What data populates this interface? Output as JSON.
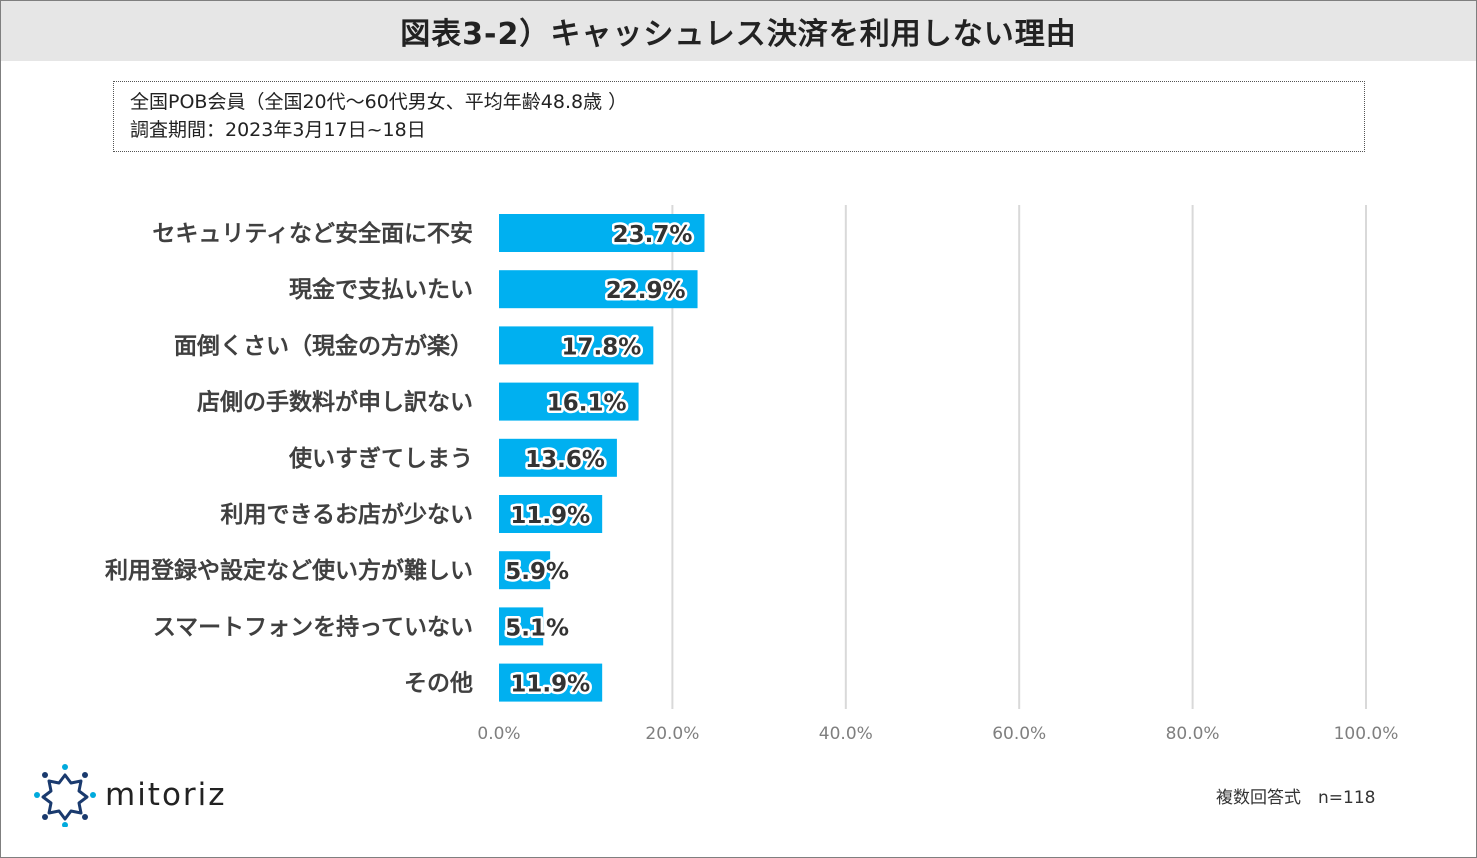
{
  "header": {
    "title": "図表3-2）キャッシュレス決済を利用しない理由"
  },
  "info": {
    "line1": "全国POB会員（全国20代～60代男女、平均年齢48.8歳 ）",
    "line2": "調査期間：2023年3月17日~18日"
  },
  "chart_data": {
    "type": "bar",
    "orientation": "horizontal",
    "categories": [
      "セキュリティなど安全面に不安",
      "現金で支払いたい",
      "面倒くさい（現金の方が楽）",
      "店側の手数料が申し訳ない",
      "使いすぎてしまう",
      "利用できるお店が少ない",
      "利用登録や設定など使い方が難しい",
      "スマートフォンを持っていない",
      "その他"
    ],
    "values": [
      23.7,
      22.9,
      17.8,
      16.1,
      13.6,
      11.9,
      5.9,
      5.1,
      11.9
    ],
    "value_labels": [
      "23.7%",
      "22.9%",
      "17.8%",
      "16.1%",
      "13.6%",
      "11.9%",
      "5.9%",
      "5.1%",
      "11.9%"
    ],
    "x_ticks": [
      "0.0%",
      "20.0%",
      "40.0%",
      "60.0%",
      "80.0%",
      "100.0%"
    ],
    "xlim": [
      0,
      100
    ],
    "grid": true,
    "bar_color": "#00b0f0"
  },
  "footer": {
    "note": "複数回答式　n=118"
  },
  "logo": {
    "text": "mitoriz",
    "icon": "sun-burst-logo-icon",
    "color_dark": "#1a3a6e",
    "color_light": "#00aadd"
  }
}
